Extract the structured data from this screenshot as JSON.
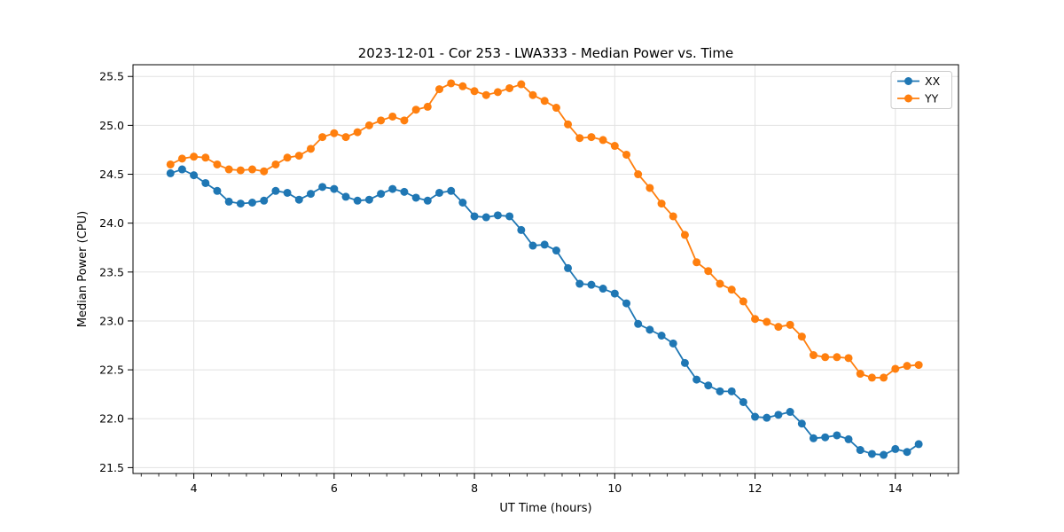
{
  "figure": {
    "background": "#ffffff"
  },
  "chart_data": {
    "type": "line",
    "title": "2023-12-01 - Cor 253 - LWA333 - Median Power vs. Time",
    "xlabel": "UT Time (hours)",
    "ylabel": "Median Power (CPU)",
    "xlim": [
      3.133,
      14.9
    ],
    "ylim": [
      21.44,
      25.62
    ],
    "x_major_ticks": [
      4,
      6,
      8,
      10,
      12,
      14
    ],
    "x_major_tick_labels": [
      "4",
      "6",
      "8",
      "10",
      "12",
      "14"
    ],
    "x_minor_tick_step": 0.25,
    "y_major_ticks": [
      21.5,
      22.0,
      22.5,
      23.0,
      23.5,
      24.0,
      24.5,
      25.0,
      25.5
    ],
    "y_major_tick_labels": [
      "21.5",
      "22.0",
      "22.5",
      "23.0",
      "23.5",
      "24.0",
      "24.5",
      "25.0",
      "25.5"
    ],
    "grid": true,
    "grid_color": "#e2e2e2",
    "spine_color": "#000000",
    "legend": {
      "position": "upper right",
      "entries": [
        {
          "label": "XX",
          "color": "#1f77b4"
        },
        {
          "label": "YY",
          "color": "#ff7f0e"
        }
      ]
    },
    "marker": {
      "shape": "circle",
      "radius": 4.5
    },
    "line_width": 1.8,
    "x": [
      3.667,
      3.833,
      4.0,
      4.167,
      4.333,
      4.5,
      4.667,
      4.833,
      5.0,
      5.167,
      5.333,
      5.5,
      5.667,
      5.833,
      6.0,
      6.167,
      6.333,
      6.5,
      6.667,
      6.833,
      7.0,
      7.167,
      7.333,
      7.5,
      7.667,
      7.833,
      8.0,
      8.167,
      8.333,
      8.5,
      8.667,
      8.833,
      9.0,
      9.167,
      9.333,
      9.5,
      9.667,
      9.833,
      10.0,
      10.167,
      10.333,
      10.5,
      10.667,
      10.833,
      11.0,
      11.167,
      11.333,
      11.5,
      11.667,
      11.833,
      12.0,
      12.167,
      12.333,
      12.5,
      12.667,
      12.833,
      13.0,
      13.167,
      13.333,
      13.5,
      13.667,
      13.833,
      14.0,
      14.167,
      14.333
    ],
    "series": [
      {
        "name": "XX",
        "color": "#1f77b4",
        "values": [
          24.51,
          24.55,
          24.49,
          24.41,
          24.33,
          24.22,
          24.2,
          24.21,
          24.23,
          24.33,
          24.31,
          24.24,
          24.3,
          24.37,
          24.35,
          24.27,
          24.23,
          24.24,
          24.3,
          24.35,
          24.32,
          24.26,
          24.23,
          24.31,
          24.33,
          24.21,
          24.07,
          24.06,
          24.08,
          24.07,
          23.93,
          23.77,
          23.78,
          23.72,
          23.54,
          23.38,
          23.37,
          23.33,
          23.28,
          23.18,
          22.97,
          22.91,
          22.85,
          22.77,
          22.57,
          22.4,
          22.34,
          22.28,
          22.28,
          22.17,
          22.02,
          22.01,
          22.04,
          22.07,
          21.95,
          21.8,
          21.81,
          21.83,
          21.79,
          21.68,
          21.64,
          21.63,
          21.69,
          21.66,
          21.74
        ]
      },
      {
        "name": "YY",
        "color": "#ff7f0e",
        "values": [
          24.6,
          24.66,
          24.68,
          24.67,
          24.6,
          24.55,
          24.54,
          24.55,
          24.53,
          24.6,
          24.67,
          24.69,
          24.76,
          24.88,
          24.92,
          24.88,
          24.93,
          25.0,
          25.05,
          25.09,
          25.05,
          25.16,
          25.19,
          25.37,
          25.43,
          25.4,
          25.35,
          25.31,
          25.34,
          25.38,
          25.42,
          25.31,
          25.25,
          25.18,
          25.01,
          24.87,
          24.88,
          24.85,
          24.79,
          24.7,
          24.5,
          24.36,
          24.2,
          24.07,
          23.88,
          23.6,
          23.51,
          23.38,
          23.32,
          23.2,
          23.02,
          22.99,
          22.94,
          22.96,
          22.84,
          22.65,
          22.63,
          22.63,
          22.62,
          22.46,
          22.42,
          22.42,
          22.51,
          22.54,
          22.55
        ]
      }
    ]
  }
}
